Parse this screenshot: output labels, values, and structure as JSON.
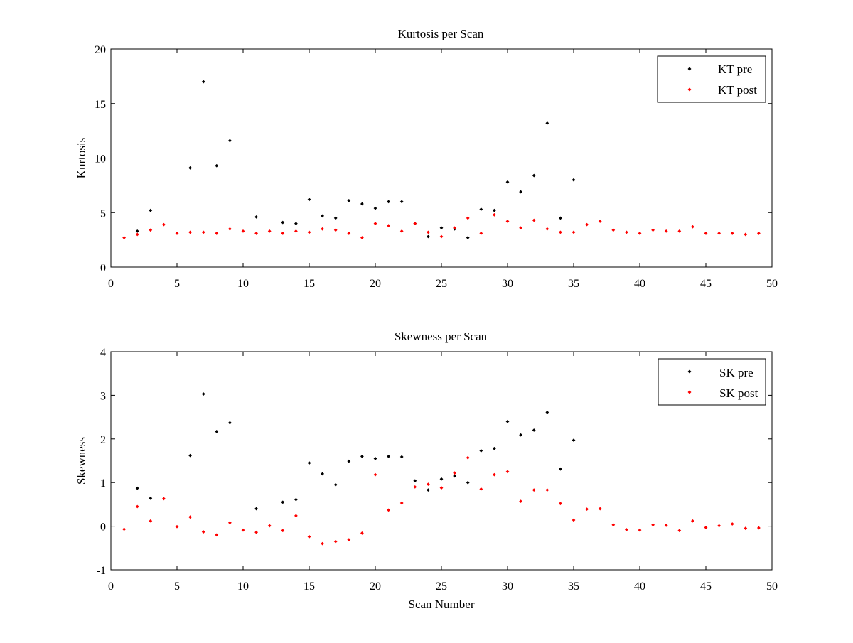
{
  "chart_data": [
    {
      "type": "scatter",
      "title": "Kurtosis per Scan",
      "xlabel": "",
      "ylabel": "Kurtosis",
      "xlim": [
        0,
        50
      ],
      "ylim": [
        0,
        20
      ],
      "xticks": [
        0,
        5,
        10,
        15,
        20,
        25,
        30,
        35,
        40,
        45,
        50
      ],
      "yticks": [
        0,
        5,
        10,
        15,
        20
      ],
      "grid": false,
      "legend_position": "top-right",
      "series": [
        {
          "name": "KT pre",
          "color": "#000000",
          "marker": "diamond",
          "x": [
            2,
            3,
            6,
            7,
            8,
            9,
            11,
            13,
            14,
            15,
            16,
            17,
            18,
            19,
            20,
            21,
            22,
            23,
            24,
            25,
            26,
            27,
            28,
            29,
            30,
            31,
            32,
            33,
            34,
            35
          ],
          "y": [
            3.3,
            5.2,
            9.1,
            17.0,
            9.3,
            11.6,
            4.6,
            4.1,
            4.0,
            6.2,
            4.7,
            4.5,
            6.1,
            5.8,
            5.4,
            6.0,
            6.0,
            4.0,
            2.8,
            3.6,
            3.5,
            2.7,
            5.3,
            5.2,
            7.8,
            6.9,
            8.4,
            13.2,
            4.5,
            8.0
          ]
        },
        {
          "name": "KT post",
          "color": "#ff0000",
          "marker": "diamond",
          "x": [
            1,
            2,
            3,
            4,
            5,
            6,
            7,
            8,
            9,
            10,
            11,
            12,
            13,
            14,
            15,
            16,
            17,
            18,
            19,
            20,
            21,
            22,
            23,
            24,
            25,
            26,
            27,
            28,
            29,
            30,
            31,
            32,
            33,
            34,
            35,
            36,
            37,
            38,
            39,
            40,
            41,
            42,
            43,
            44,
            45,
            46,
            47,
            48,
            49
          ],
          "y": [
            2.7,
            3.0,
            3.4,
            3.9,
            3.1,
            3.2,
            3.2,
            3.1,
            3.5,
            3.3,
            3.1,
            3.3,
            3.1,
            3.3,
            3.2,
            3.5,
            3.4,
            3.1,
            2.7,
            4.0,
            3.8,
            3.3,
            4.0,
            3.2,
            2.8,
            3.6,
            4.5,
            3.1,
            4.8,
            4.2,
            3.6,
            4.3,
            3.5,
            3.2,
            3.2,
            3.9,
            4.2,
            3.4,
            3.2,
            3.1,
            3.4,
            3.3,
            3.3,
            3.7,
            3.1,
            3.1,
            3.1,
            3.0,
            3.1
          ]
        }
      ]
    },
    {
      "type": "scatter",
      "title": "Skewness per Scan",
      "xlabel": "Scan Number",
      "ylabel": "Skewness",
      "xlim": [
        0,
        50
      ],
      "ylim": [
        -1,
        4
      ],
      "xticks": [
        0,
        5,
        10,
        15,
        20,
        25,
        30,
        35,
        40,
        45,
        50
      ],
      "yticks": [
        -1,
        0,
        1,
        2,
        3,
        4
      ],
      "grid": false,
      "legend_position": "top-right",
      "series": [
        {
          "name": "SK pre",
          "color": "#000000",
          "marker": "diamond",
          "x": [
            2,
            3,
            6,
            7,
            8,
            9,
            11,
            13,
            14,
            15,
            16,
            17,
            18,
            19,
            20,
            21,
            22,
            23,
            24,
            25,
            26,
            27,
            28,
            29,
            30,
            31,
            32,
            33,
            34,
            35
          ],
          "y": [
            0.87,
            0.64,
            1.62,
            3.03,
            2.17,
            2.37,
            0.4,
            0.55,
            0.61,
            1.45,
            1.2,
            0.95,
            1.49,
            1.6,
            1.55,
            1.6,
            1.59,
            1.04,
            0.83,
            1.08,
            1.15,
            1.0,
            1.73,
            1.78,
            2.4,
            2.09,
            2.2,
            2.61,
            1.31,
            1.97
          ]
        },
        {
          "name": "SK post",
          "color": "#ff0000",
          "marker": "diamond",
          "x": [
            1,
            2,
            3,
            4,
            5,
            6,
            7,
            8,
            9,
            10,
            11,
            12,
            13,
            14,
            15,
            16,
            17,
            18,
            19,
            20,
            21,
            22,
            23,
            24,
            25,
            26,
            27,
            28,
            29,
            30,
            31,
            32,
            33,
            34,
            35,
            36,
            37,
            38,
            39,
            40,
            41,
            42,
            43,
            44,
            45,
            46,
            47,
            48,
            49
          ],
          "y": [
            -0.07,
            0.45,
            0.12,
            0.63,
            -0.01,
            0.21,
            -0.13,
            -0.2,
            0.08,
            -0.09,
            -0.14,
            0.01,
            -0.1,
            0.24,
            -0.24,
            -0.4,
            -0.35,
            -0.31,
            -0.16,
            1.18,
            0.37,
            0.53,
            0.9,
            0.96,
            0.88,
            1.22,
            1.57,
            0.85,
            1.18,
            1.25,
            0.57,
            0.83,
            0.83,
            0.52,
            0.14,
            0.39,
            0.4,
            0.03,
            -0.08,
            -0.09,
            0.03,
            0.02,
            -0.1,
            0.12,
            -0.03,
            0.01,
            0.05,
            -0.05,
            -0.04
          ]
        }
      ]
    }
  ]
}
